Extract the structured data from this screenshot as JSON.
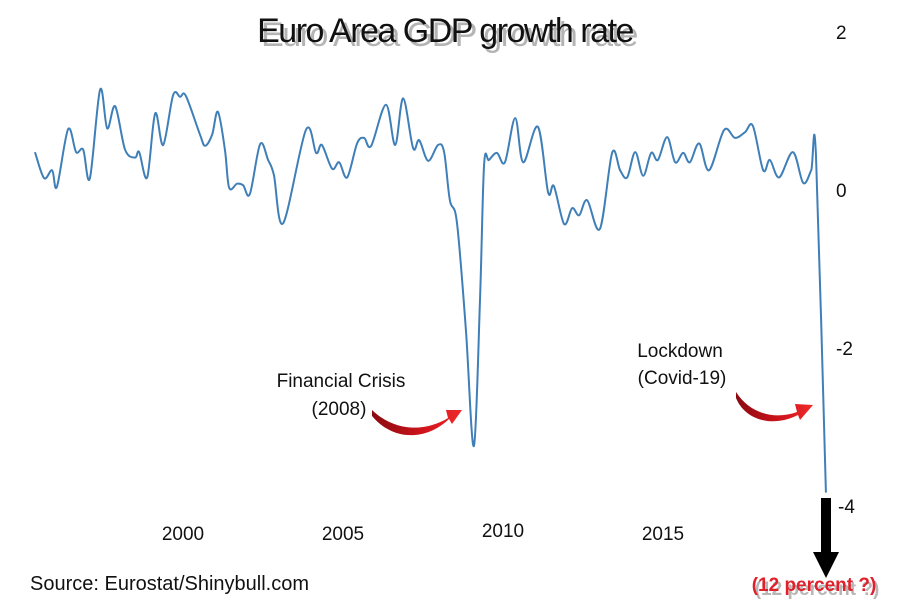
{
  "chart_data": {
    "type": "line",
    "title": "Euro Area GDP growth rate",
    "xlabel": "",
    "ylabel": "",
    "xlim": [
      1995.4,
      2020.1
    ],
    "ylim": [
      -4,
      2
    ],
    "x_ticks": [
      2000,
      2005,
      2010,
      2015
    ],
    "x_tick_labels": [
      "2000",
      "2005",
      "2010",
      "2015"
    ],
    "y_ticks": [
      2,
      0,
      -2,
      -4
    ],
    "y_tick_labels": [
      "2",
      "0",
      "-2",
      "-4"
    ],
    "y_axis_side": "right",
    "grid": false,
    "line_color": "#3f7fb8",
    "series": [
      {
        "name": "Euro Area GDP growth rate (%)",
        "x": [
          1995.38,
          1995.66,
          1995.91,
          1996.06,
          1996.41,
          1996.66,
          1996.88,
          1997.09,
          1997.41,
          1997.63,
          1997.88,
          1998.19,
          1998.5,
          1998.63,
          1998.88,
          1999.13,
          1999.38,
          1999.69,
          1999.91,
          2000.09,
          2000.53,
          2000.69,
          2000.91,
          2001.09,
          2001.31,
          2001.44,
          2001.69,
          2001.88,
          2002.09,
          2002.41,
          2002.66,
          2002.84,
          2003.13,
          2003.84,
          2004.16,
          2004.34,
          2004.66,
          2004.88,
          2005.13,
          2005.44,
          2005.66,
          2005.88,
          2006.34,
          2006.63,
          2006.88,
          2007.19,
          2007.38,
          2007.66,
          2007.97,
          2008.16,
          2008.34,
          2008.56,
          2008.84,
          2009.09,
          2009.28,
          2009.41,
          2009.56,
          2009.81,
          2010.06,
          2010.38,
          2010.63,
          2011.09,
          2011.41,
          2011.59,
          2011.91,
          2012.16,
          2012.38,
          2012.63,
          2013.03,
          2013.41,
          2013.66,
          2013.88,
          2014.13,
          2014.38,
          2014.63,
          2014.84,
          2015.13,
          2015.38,
          2015.63,
          2015.84,
          2016.13,
          2016.44,
          2016.91,
          2017.25,
          2017.56,
          2017.81,
          2018.13,
          2018.34,
          2018.63,
          2019.06,
          2019.38,
          2019.63,
          2019.78,
          2020.09
        ],
        "values": [
          0.47,
          0.15,
          0.25,
          0.04,
          0.77,
          0.48,
          0.51,
          0.15,
          1.27,
          0.78,
          1.06,
          0.51,
          0.41,
          0.48,
          0.16,
          0.97,
          0.57,
          1.2,
          1.18,
          1.19,
          0.7,
          0.56,
          0.7,
          0.99,
          0.51,
          0.03,
          0.08,
          0.06,
          -0.05,
          0.58,
          0.38,
          0.19,
          -0.42,
          0.76,
          0.47,
          0.57,
          0.27,
          0.35,
          0.16,
          0.59,
          0.66,
          0.56,
          1.08,
          0.57,
          1.16,
          0.53,
          0.63,
          0.37,
          0.57,
          0.48,
          -0.13,
          -0.41,
          -1.77,
          -3.24,
          -1.39,
          0.32,
          0.38,
          0.47,
          0.35,
          0.91,
          0.35,
          0.8,
          -0.03,
          0.05,
          -0.43,
          -0.23,
          -0.32,
          -0.13,
          -0.49,
          0.47,
          0.25,
          0.16,
          0.48,
          0.18,
          0.47,
          0.38,
          0.67,
          0.35,
          0.47,
          0.35,
          0.59,
          0.25,
          0.76,
          0.66,
          0.73,
          0.81,
          0.25,
          0.38,
          0.16,
          0.48,
          0.09,
          0.25,
          0.43,
          -3.82
        ]
      }
    ],
    "annotations": [
      {
        "id": "financial-crisis",
        "lines": [
          "Financial Crisis",
          "(2008)"
        ],
        "points_to_year": 2009.0,
        "arrow_color": "#c4121a"
      },
      {
        "id": "lockdown",
        "lines": [
          "Lockdown",
          "(Covid-19)"
        ],
        "points_to_year": 2020.0,
        "arrow_color": "#c4121a"
      },
      {
        "id": "projection",
        "text": "(12 percent ?)",
        "color": "#e0202a",
        "arrow_color": "#000000",
        "direction": "down"
      }
    ],
    "source": "Source: Eurostat/Shinybull.com"
  }
}
